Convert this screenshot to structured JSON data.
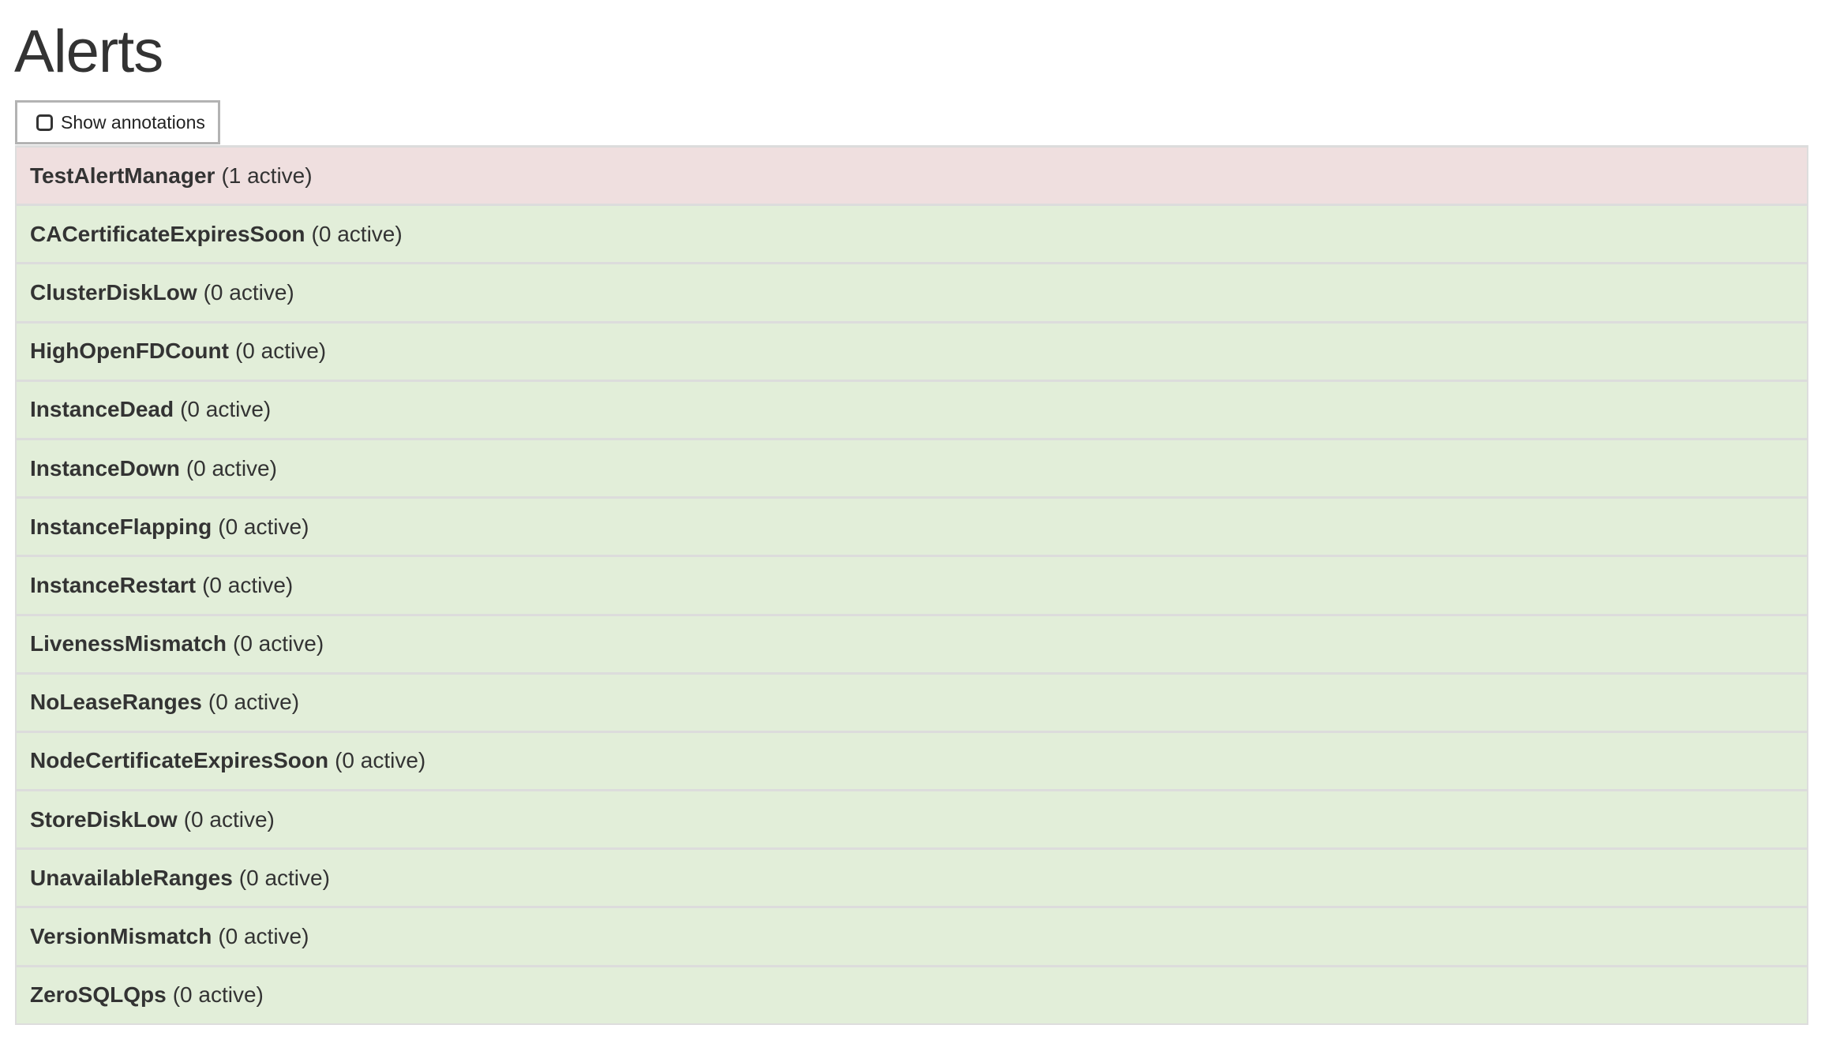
{
  "page": {
    "title": "Alerts"
  },
  "toolbar": {
    "show_annotations_label": "Show annotations",
    "show_annotations_checked": false
  },
  "colors": {
    "firing": "#efdfdf",
    "inactive": "#e2eed9"
  },
  "alerts": [
    {
      "name": "TestAlertManager",
      "count": "(1 active)",
      "state": "firing"
    },
    {
      "name": "CACertificateExpiresSoon",
      "count": "(0 active)",
      "state": "inactive"
    },
    {
      "name": "ClusterDiskLow",
      "count": "(0 active)",
      "state": "inactive"
    },
    {
      "name": "HighOpenFDCount",
      "count": "(0 active)",
      "state": "inactive"
    },
    {
      "name": "InstanceDead",
      "count": "(0 active)",
      "state": "inactive"
    },
    {
      "name": "InstanceDown",
      "count": "(0 active)",
      "state": "inactive"
    },
    {
      "name": "InstanceFlapping",
      "count": "(0 active)",
      "state": "inactive"
    },
    {
      "name": "InstanceRestart",
      "count": "(0 active)",
      "state": "inactive"
    },
    {
      "name": "LivenessMismatch",
      "count": "(0 active)",
      "state": "inactive"
    },
    {
      "name": "NoLeaseRanges",
      "count": "(0 active)",
      "state": "inactive"
    },
    {
      "name": "NodeCertificateExpiresSoon",
      "count": "(0 active)",
      "state": "inactive"
    },
    {
      "name": "StoreDiskLow",
      "count": "(0 active)",
      "state": "inactive"
    },
    {
      "name": "UnavailableRanges",
      "count": "(0 active)",
      "state": "inactive"
    },
    {
      "name": "VersionMismatch",
      "count": "(0 active)",
      "state": "inactive"
    },
    {
      "name": "ZeroSQLQps",
      "count": "(0 active)",
      "state": "inactive"
    }
  ]
}
